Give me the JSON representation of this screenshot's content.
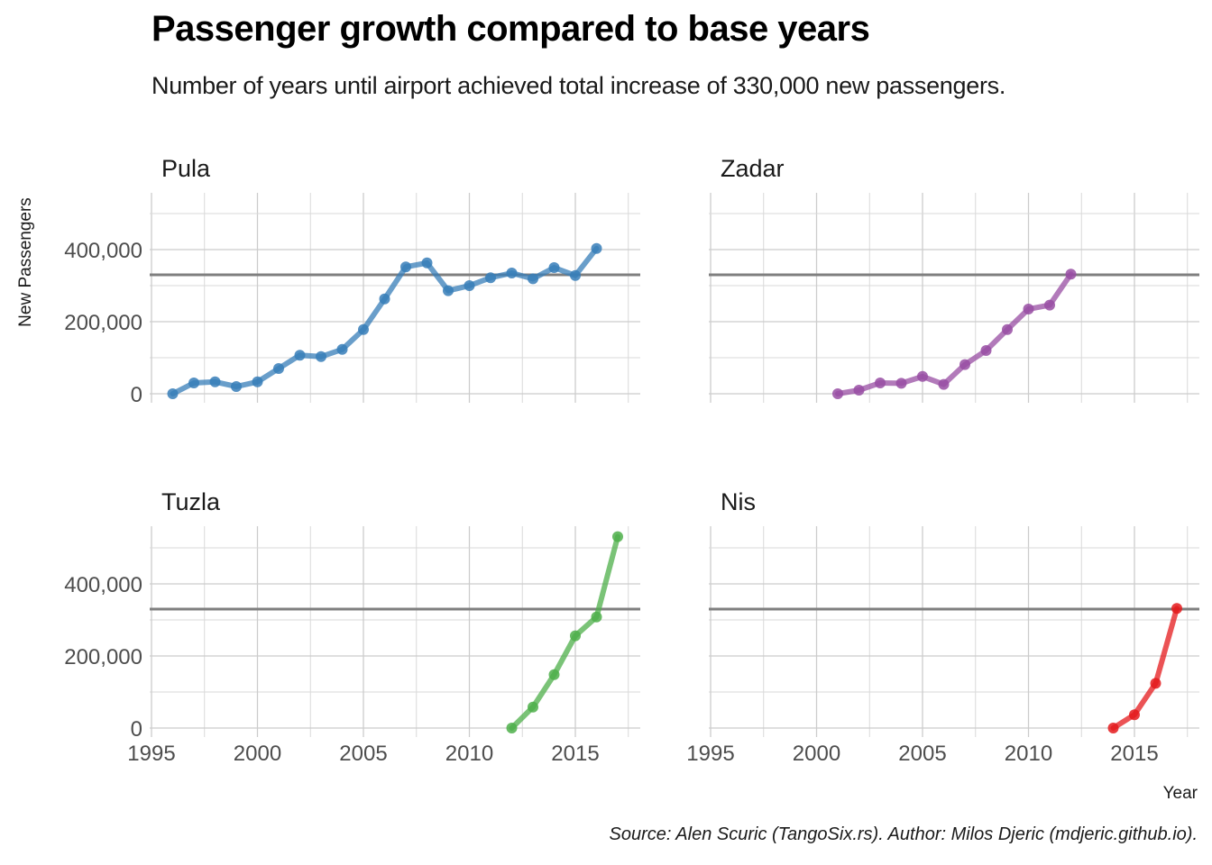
{
  "title": "Passenger growth compared to base years",
  "subtitle": "Number of years until airport achieved total increase of 330,000 new passengers.",
  "caption": "Source: Alen Scuric (TangoSix.rs). Author: Milos Djeric (mdjeric.github.io).",
  "chart_data": {
    "type": "line",
    "facet_layout": "2x2",
    "xlabel": "Year",
    "ylabel": "New Passengers",
    "xlim": [
      1995,
      2018
    ],
    "ylim": [
      0,
      550000
    ],
    "x_ticks": [
      1995,
      2000,
      2005,
      2010,
      2015
    ],
    "x_tick_labels": [
      "1995",
      "2000",
      "2005",
      "2010",
      "2015"
    ],
    "y_ticks": [
      0,
      200000,
      400000
    ],
    "y_tick_labels": [
      "0",
      "200,000",
      "400,000"
    ],
    "reference_line": 330000,
    "reference_line_color": "#7f7f7f",
    "grid": true,
    "panels": [
      {
        "name": "Pula",
        "color": "#377eb8",
        "x": [
          1996,
          1997,
          1998,
          1999,
          2000,
          2001,
          2002,
          2003,
          2004,
          2005,
          2006,
          2007,
          2008,
          2009,
          2010,
          2011,
          2012,
          2013,
          2014,
          2015,
          2016
        ],
        "y": [
          0,
          30000,
          33000,
          20000,
          33000,
          70000,
          107000,
          103000,
          123000,
          178000,
          263000,
          352000,
          363000,
          286000,
          300000,
          322000,
          335000,
          319000,
          350000,
          328000,
          403000
        ]
      },
      {
        "name": "Zadar",
        "color": "#984ea3",
        "x": [
          2001,
          2002,
          2003,
          2004,
          2005,
          2006,
          2007,
          2008,
          2009,
          2010,
          2011,
          2012
        ],
        "y": [
          0,
          10000,
          30000,
          29000,
          48000,
          26000,
          81000,
          120000,
          178000,
          235000,
          246000,
          332000
        ]
      },
      {
        "name": "Tuzla",
        "color": "#4daf4a",
        "x": [
          2012,
          2013,
          2014,
          2015,
          2016,
          2017
        ],
        "y": [
          0,
          58000,
          148000,
          256000,
          308000,
          531000
        ]
      },
      {
        "name": "Nis",
        "color": "#e41a1c",
        "x": [
          2014,
          2015,
          2016,
          2017
        ],
        "y": [
          0,
          37000,
          124000,
          332000
        ]
      }
    ]
  }
}
